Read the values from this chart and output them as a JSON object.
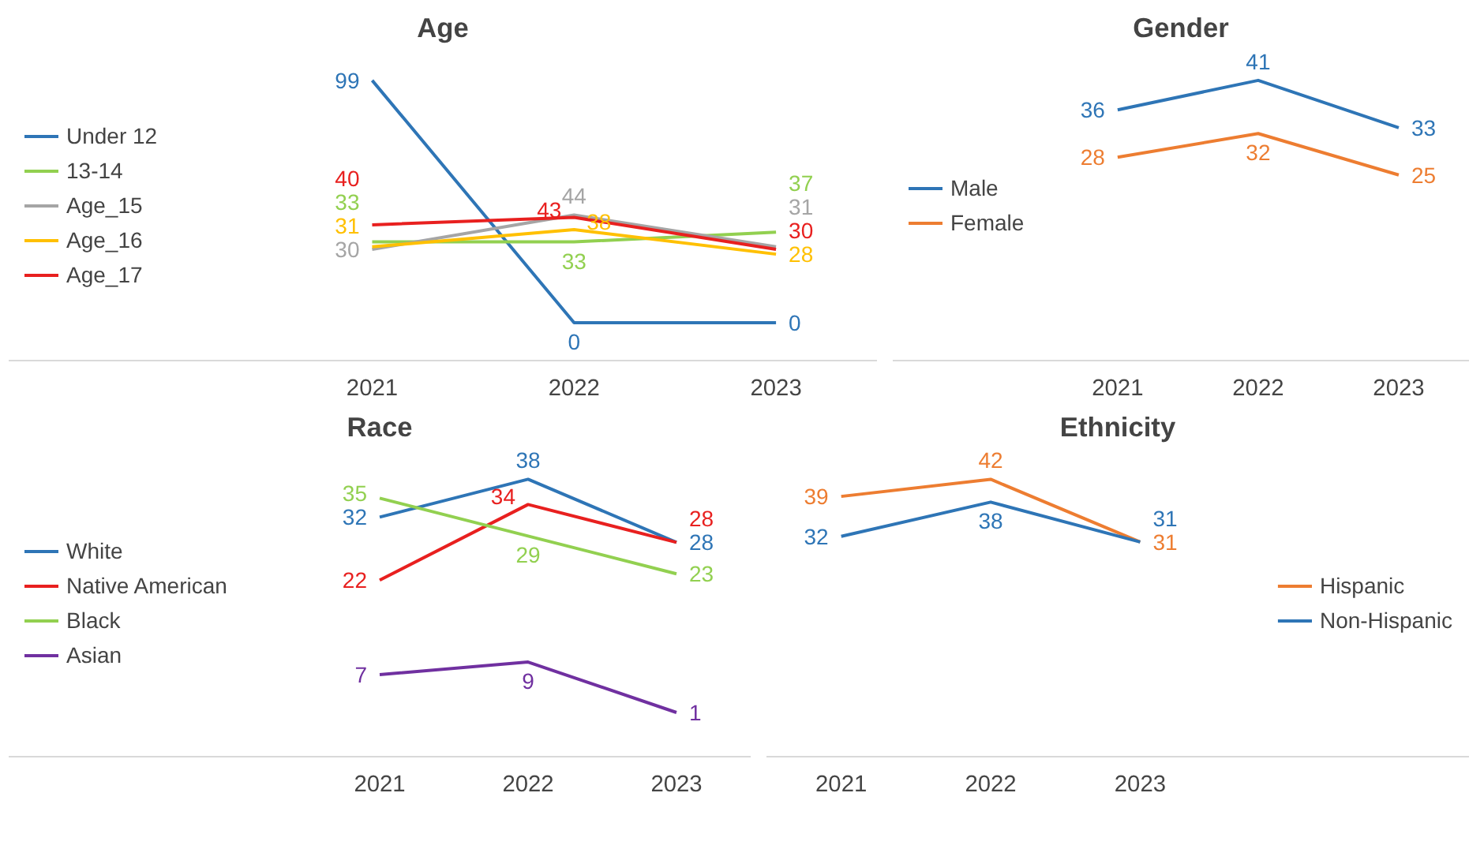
{
  "chart_data": [
    {
      "type": "line",
      "title": "Age",
      "categories": [
        "2021",
        "2022",
        "2023"
      ],
      "legend": "left",
      "data_labels": true,
      "series": [
        {
          "name": "Under 12",
          "color": "#2e75b6",
          "values": [
            99,
            0,
            0
          ]
        },
        {
          "name": "13-14",
          "color": "#92d050",
          "values": [
            33,
            33,
            37
          ]
        },
        {
          "name": "Age_15",
          "color": "#a5a5a5",
          "values": [
            30,
            44,
            31
          ]
        },
        {
          "name": "Age_16",
          "color": "#ffc000",
          "values": [
            31,
            38,
            28
          ]
        },
        {
          "name": "Age_17",
          "color": "#e8201f",
          "values": [
            40,
            43,
            30
          ]
        }
      ]
    },
    {
      "type": "line",
      "title": "Gender",
      "categories": [
        "2021",
        "2022",
        "2023"
      ],
      "legend": "left",
      "data_labels": true,
      "series": [
        {
          "name": "Male",
          "color": "#2e75b6",
          "values": [
            36,
            41,
            33
          ]
        },
        {
          "name": "Female",
          "color": "#ed7d31",
          "values": [
            28,
            32,
            25
          ]
        }
      ]
    },
    {
      "type": "line",
      "title": "Race",
      "categories": [
        "2021",
        "2022",
        "2023"
      ],
      "legend": "left",
      "data_labels": true,
      "series": [
        {
          "name": "White",
          "color": "#2e75b6",
          "values": [
            32,
            38,
            28
          ]
        },
        {
          "name": "Native American",
          "color": "#e8201f",
          "values": [
            22,
            34,
            28
          ]
        },
        {
          "name": "Black",
          "color": "#92d050",
          "values": [
            35,
            29,
            23
          ]
        },
        {
          "name": "Asian",
          "color": "#7030a0",
          "values": [
            7,
            9,
            1
          ]
        }
      ]
    },
    {
      "type": "line",
      "title": "Ethnicity",
      "categories": [
        "2021",
        "2022",
        "2023"
      ],
      "legend": "right",
      "data_labels": true,
      "series": [
        {
          "name": "Hispanic",
          "color": "#ed7d31",
          "values": [
            39,
            42,
            31
          ]
        },
        {
          "name": "Non-Hispanic",
          "color": "#2e75b6",
          "values": [
            32,
            38,
            31
          ]
        }
      ]
    }
  ]
}
